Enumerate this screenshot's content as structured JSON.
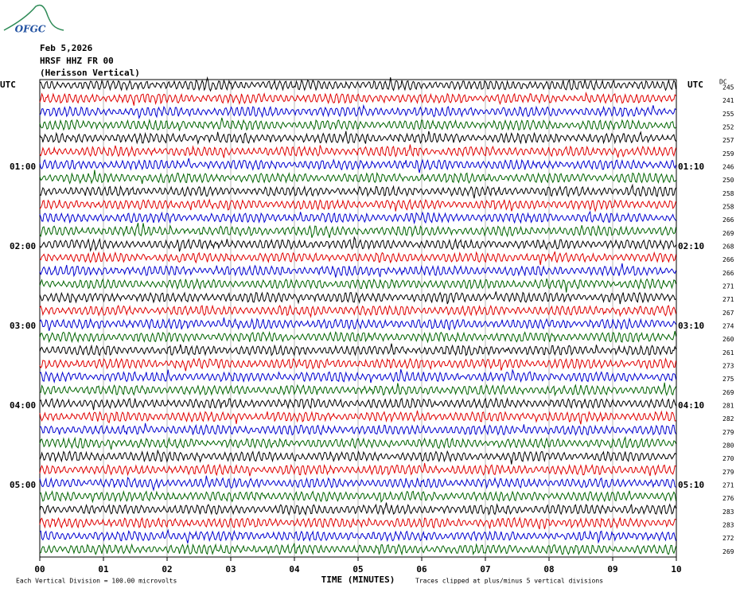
{
  "logo": "OFGC",
  "header": {
    "date": "Feb 5,2026",
    "station": "HRSF HHZ FR 00",
    "component": "(Herisson Vertical)",
    "left_zone": "UTC",
    "right_zone": "UTC",
    "dc_label": "DC"
  },
  "trace_colors": [
    "#000000",
    "#e00000",
    "#0000d0",
    "#006400"
  ],
  "rows": [
    {
      "dc": "245"
    },
    {
      "dc": "241"
    },
    {
      "dc": "255"
    },
    {
      "dc": "252"
    },
    {
      "dc": "257"
    },
    {
      "dc": "259"
    },
    {
      "dc": "246",
      "left": "01:00",
      "right": "01:10"
    },
    {
      "dc": "250"
    },
    {
      "dc": "258"
    },
    {
      "dc": "258"
    },
    {
      "dc": "266"
    },
    {
      "dc": "269"
    },
    {
      "dc": "268",
      "left": "02:00",
      "right": "02:10"
    },
    {
      "dc": "266"
    },
    {
      "dc": "266"
    },
    {
      "dc": "271"
    },
    {
      "dc": "271"
    },
    {
      "dc": "267"
    },
    {
      "dc": "274",
      "left": "03:00",
      "right": "03:10"
    },
    {
      "dc": "260"
    },
    {
      "dc": "261"
    },
    {
      "dc": "273"
    },
    {
      "dc": "275"
    },
    {
      "dc": "269"
    },
    {
      "dc": "281",
      "left": "04:00",
      "right": "04:10"
    },
    {
      "dc": "282"
    },
    {
      "dc": "279"
    },
    {
      "dc": "280"
    },
    {
      "dc": "270"
    },
    {
      "dc": "279"
    },
    {
      "dc": "271",
      "left": "05:00",
      "right": "05:10"
    },
    {
      "dc": "276"
    },
    {
      "dc": "283"
    },
    {
      "dc": "283"
    },
    {
      "dc": "272"
    },
    {
      "dc": "269"
    }
  ],
  "x_labels": [
    "00",
    "01",
    "02",
    "03",
    "04",
    "05",
    "06",
    "07",
    "08",
    "09",
    "10"
  ],
  "footer": {
    "axis_title": "TIME (MINUTES)",
    "scale_note": "Each Vertical Division =  100.00 microvolts",
    "clip_note": "Traces clipped at plus/minus 5 vertical divisions"
  }
}
